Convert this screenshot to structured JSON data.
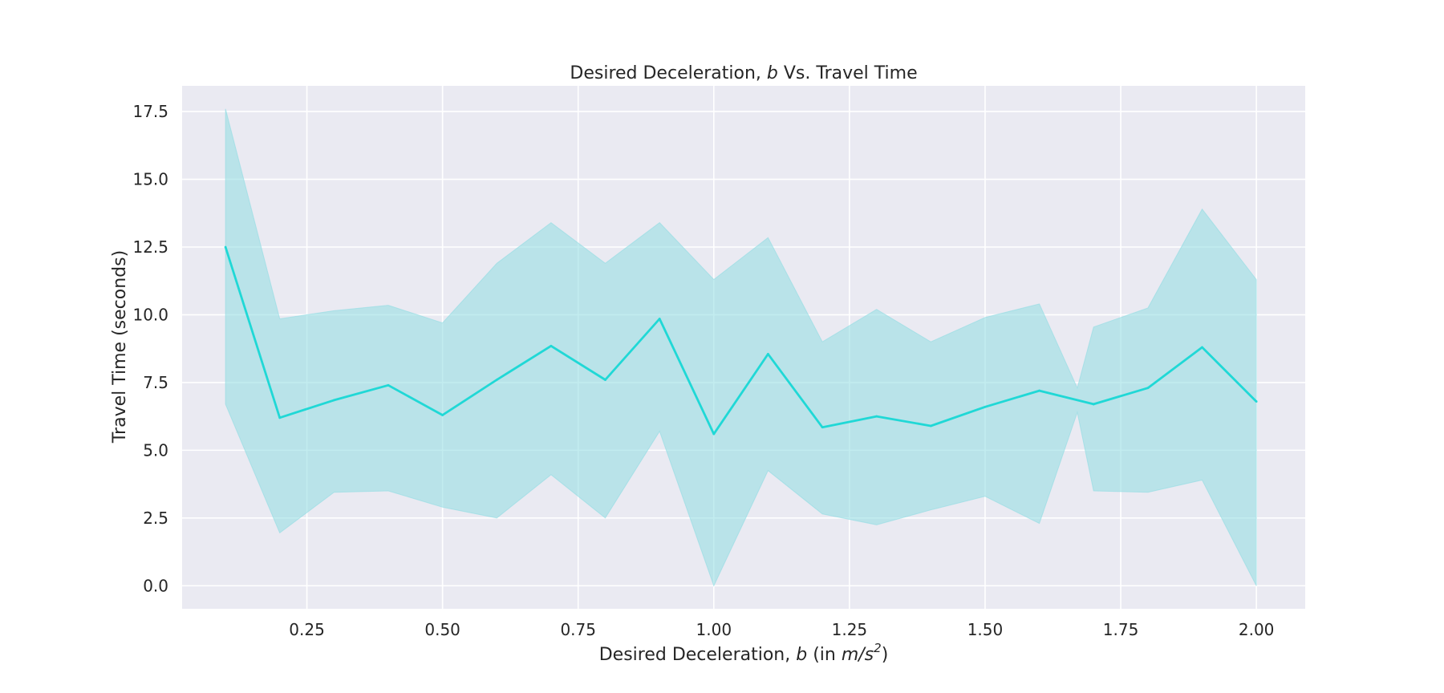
{
  "chart_data": {
    "type": "line",
    "title": "Desired Deceleration, b Vs. Travel Time",
    "title_parts": {
      "prefix": "Desired Deceleration, ",
      "var": "b",
      "suffix": " Vs. Travel Time"
    },
    "xlabel": "Desired Deceleration, b (in m/s²)",
    "xlabel_parts": {
      "prefix": "Desired Deceleration, ",
      "var": "b",
      "mid": " (in ",
      "unit": "m/s",
      "sup": "2",
      "suffix": ")"
    },
    "ylabel": "Travel Time (seconds)",
    "xlim": [
      0.02,
      2.09
    ],
    "ylim": [
      -0.85,
      18.45
    ],
    "x_ticks": [
      0.25,
      0.5,
      0.75,
      1.0,
      1.25,
      1.5,
      1.75,
      2.0
    ],
    "x_tick_labels": [
      "0.25",
      "0.50",
      "0.75",
      "1.00",
      "1.25",
      "1.50",
      "1.75",
      "2.00"
    ],
    "y_ticks": [
      0.0,
      2.5,
      5.0,
      7.5,
      10.0,
      12.5,
      15.0,
      17.5
    ],
    "y_tick_labels": [
      "0.0",
      "2.5",
      "5.0",
      "7.5",
      "10.0",
      "12.5",
      "15.0",
      "17.5"
    ],
    "grid": true,
    "colors": {
      "line": "#20d8d6",
      "band": "#8fdce2",
      "background": "#eaeaf2",
      "grid": "#ffffff"
    },
    "series": [
      {
        "x": [
          0.1,
          0.2,
          0.3,
          0.4,
          0.5,
          0.6,
          0.7,
          0.8,
          0.9,
          1.0,
          1.1,
          1.2,
          1.3,
          1.4,
          1.5,
          1.6,
          1.7,
          1.8,
          1.9,
          2.0
        ],
        "values": [
          12.5,
          6.2,
          6.85,
          7.4,
          6.3,
          7.6,
          8.85,
          7.6,
          9.85,
          5.6,
          8.55,
          5.85,
          6.25,
          5.9,
          6.6,
          7.2,
          6.7,
          7.3,
          8.8,
          6.8
        ]
      }
    ],
    "band": {
      "upper_x": [
        0.1,
        0.2,
        0.3,
        0.4,
        0.5,
        0.6,
        0.7,
        0.8,
        0.9,
        1.0,
        1.1,
        1.2,
        1.3,
        1.4,
        1.5,
        1.6,
        1.67,
        1.7,
        1.8,
        1.9,
        2.0
      ],
      "upper": [
        17.6,
        9.85,
        10.15,
        10.35,
        9.7,
        11.9,
        13.4,
        11.9,
        13.4,
        11.3,
        12.85,
        9.0,
        10.2,
        9.0,
        9.9,
        10.4,
        7.3,
        9.55,
        10.25,
        13.9,
        11.3
      ],
      "lower_x": [
        0.1,
        0.2,
        0.3,
        0.4,
        0.5,
        0.6,
        0.7,
        0.8,
        0.9,
        1.0,
        1.1,
        1.2,
        1.3,
        1.4,
        1.5,
        1.6,
        1.67,
        1.7,
        1.8,
        1.9,
        2.0
      ],
      "lower": [
        6.7,
        1.95,
        3.45,
        3.5,
        2.9,
        2.5,
        4.1,
        2.5,
        5.7,
        0.0,
        4.25,
        2.65,
        2.25,
        2.8,
        3.3,
        2.3,
        6.4,
        3.5,
        3.45,
        3.9,
        0.0
      ]
    }
  }
}
